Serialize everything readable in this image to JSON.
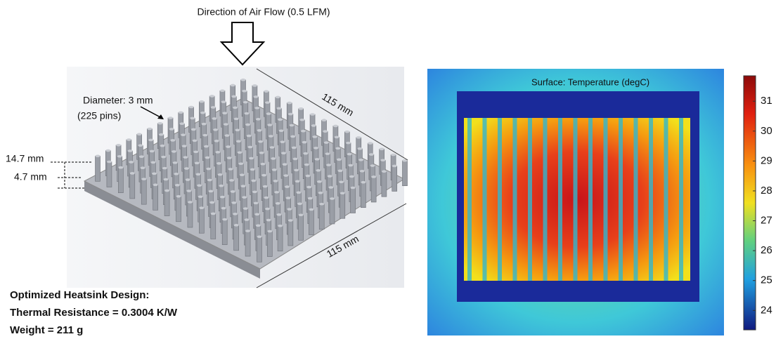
{
  "heatsink": {
    "airflow": "Direction of Air Flow (0.5 LFM)",
    "diameter": "Diameter: 3 mm",
    "pins": "(225 pins)",
    "length_back": "115 mm",
    "length_front": "115 mm",
    "pin_height": "14.7 mm",
    "base_height": "4.7 mm"
  },
  "summary": {
    "title": "Optimized Heatsink Design:",
    "resistance": "Thermal Resistance = 0.3004 K/W",
    "weight": "Weight = 211 g"
  },
  "simulation": {
    "title": "Surface: Temperature (degC)",
    "colorbar": {
      "lim": [
        23.35,
        31.85
      ],
      "ticks": [
        24,
        25,
        26,
        27,
        28,
        29,
        30,
        31
      ]
    }
  }
}
